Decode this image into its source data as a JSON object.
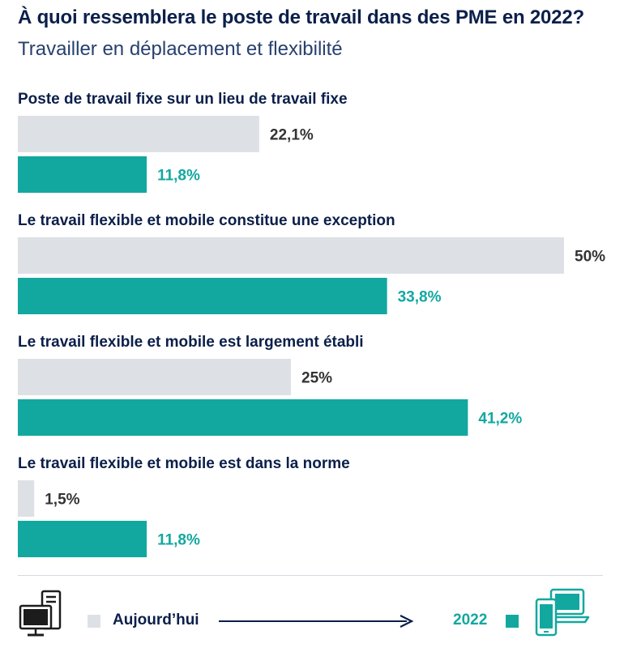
{
  "title": "À quoi ressemblera le poste de travail dans des PME en 2022?",
  "subtitle": "Travailler en déplacement et flexibilité",
  "colors": {
    "today": "#dde1e6",
    "future": "#12a8a0",
    "today_label": "#333333",
    "future_label": "#12a8a0",
    "heading": "#0b1f4a"
  },
  "chart_data": {
    "type": "bar",
    "orientation": "horizontal",
    "xlim": [
      0,
      50
    ],
    "grid": false,
    "categories": [
      "Poste de travail fixe sur un lieu de travail fixe",
      "Le travail flexible et mobile constitue une exception",
      "Le travail flexible et mobile est largement établi",
      "Le travail flexible et mobile est dans la norme"
    ],
    "series": [
      {
        "name": "Aujourd’hui",
        "values": [
          22.1,
          50,
          25,
          1.5
        ],
        "labels": [
          "22,1%",
          "50%",
          "25%",
          "1,5%"
        ]
      },
      {
        "name": "2022",
        "values": [
          11.8,
          33.8,
          41.2,
          11.8
        ],
        "labels": [
          "11,8%",
          "33,8%",
          "41,2%",
          "11,8%"
        ]
      }
    ],
    "legend": "bottom"
  },
  "legend": {
    "today_label": "Aujourd’hui",
    "future_label": "2022",
    "today_icon": "desktop-computer-icon",
    "future_icon": "laptop-phone-icon",
    "arrow_icon": "arrow-right-icon"
  }
}
